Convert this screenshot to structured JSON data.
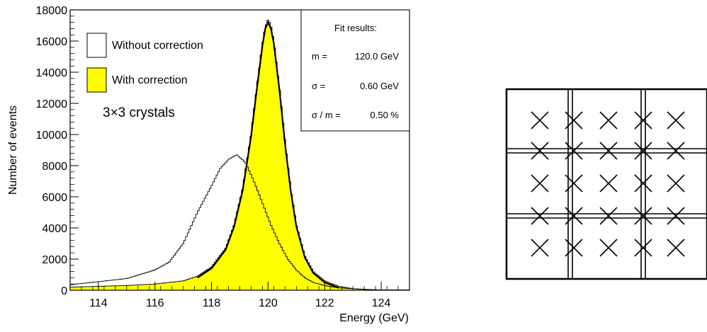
{
  "chart_data": {
    "type": "histogram",
    "xlabel": "Energy (GeV)",
    "ylabel": "Number of events",
    "xlim": [
      113,
      125
    ],
    "ylim": [
      0,
      18000
    ],
    "x_ticks": [
      114,
      116,
      118,
      120,
      122,
      124
    ],
    "y_ticks": [
      0,
      2000,
      4000,
      6000,
      8000,
      10000,
      12000,
      14000,
      16000,
      18000
    ],
    "series": [
      {
        "name": "Without correction",
        "style": "outline",
        "color": "#000000",
        "x": [
          113.0,
          114.0,
          115.0,
          116.0,
          116.5,
          117.0,
          117.5,
          118.0,
          118.3,
          118.6,
          118.9,
          119.2,
          119.5,
          119.8,
          120.1,
          120.4,
          120.7,
          121.0,
          121.3,
          121.6,
          122.0,
          122.5,
          123.0,
          123.5,
          124.0
        ],
        "y": [
          350,
          550,
          750,
          1300,
          1800,
          3000,
          5000,
          6700,
          7800,
          8400,
          8700,
          8200,
          7000,
          5600,
          4200,
          3000,
          2000,
          1300,
          800,
          500,
          300,
          150,
          100,
          50,
          20
        ]
      },
      {
        "name": "With correction",
        "style": "filled",
        "color": "#ffff00",
        "x": [
          113.0,
          114.0,
          115.0,
          116.0,
          117.0,
          117.5,
          118.0,
          118.5,
          118.8,
          119.1,
          119.4,
          119.6,
          119.8,
          119.9,
          120.0,
          120.1,
          120.2,
          120.4,
          120.6,
          120.8,
          121.0,
          121.3,
          121.6,
          122.0,
          122.5,
          123.0,
          123.5,
          124.0
        ],
        "y": [
          200,
          250,
          300,
          400,
          600,
          900,
          1500,
          2700,
          4200,
          6500,
          10000,
          13000,
          15800,
          16900,
          17400,
          17000,
          16000,
          13000,
          9500,
          6500,
          4200,
          2200,
          1200,
          600,
          250,
          100,
          40,
          15
        ]
      }
    ],
    "fit_curve": {
      "name": "fit",
      "x": [
        117.5,
        118.0,
        118.5,
        118.8,
        119.1,
        119.4,
        119.6,
        119.8,
        119.9,
        120.0,
        120.1,
        120.2,
        120.4,
        120.6,
        120.8,
        121.0,
        121.3,
        121.6,
        122.0,
        122.5
      ],
      "y": [
        800,
        1400,
        2600,
        4100,
        6400,
        9900,
        12900,
        15700,
        16800,
        17200,
        16800,
        15900,
        12900,
        9400,
        6400,
        4100,
        2100,
        1100,
        500,
        150
      ]
    },
    "legend": {
      "placement": "top-left",
      "items": [
        "Without correction",
        "With correction"
      ]
    },
    "annotation": "3×3 crystals",
    "fit_box": {
      "title": "Fit results:",
      "rows": [
        {
          "label": "m =",
          "value": "120.0 GeV"
        },
        {
          "label": "σ =",
          "value": "0.60 GeV"
        },
        {
          "label": "σ / m =",
          "value": "0.50 %"
        }
      ]
    }
  },
  "crystal_diagram": {
    "rows": 3,
    "cols": 3,
    "marker_grid": [
      5,
      5
    ]
  }
}
